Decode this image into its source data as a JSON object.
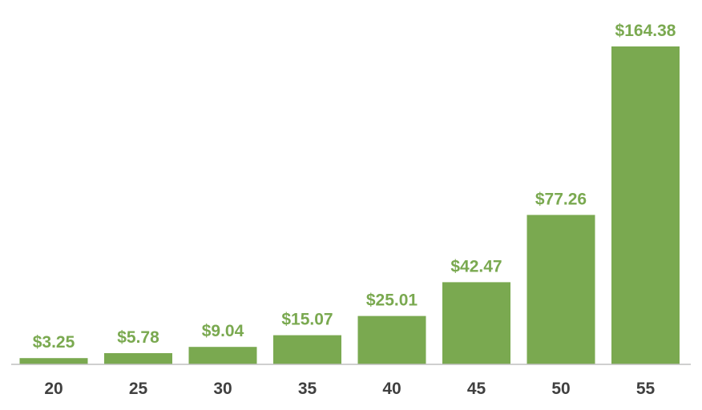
{
  "chart_data": {
    "type": "bar",
    "categories": [
      "20",
      "25",
      "30",
      "35",
      "40",
      "45",
      "50",
      "55"
    ],
    "values": [
      3.25,
      5.78,
      9.04,
      15.07,
      25.01,
      42.47,
      77.26,
      164.38
    ],
    "value_labels": [
      "$3.25",
      "$5.78",
      "$9.04",
      "$15.07",
      "$25.01",
      "$42.47",
      "$77.26",
      "$164.38"
    ],
    "ylim": [
      0,
      164.38
    ],
    "grid": false,
    "legend": "none",
    "bar_color": "#7aa950",
    "label_color": "#7aa950",
    "tick_color": "#404040"
  }
}
